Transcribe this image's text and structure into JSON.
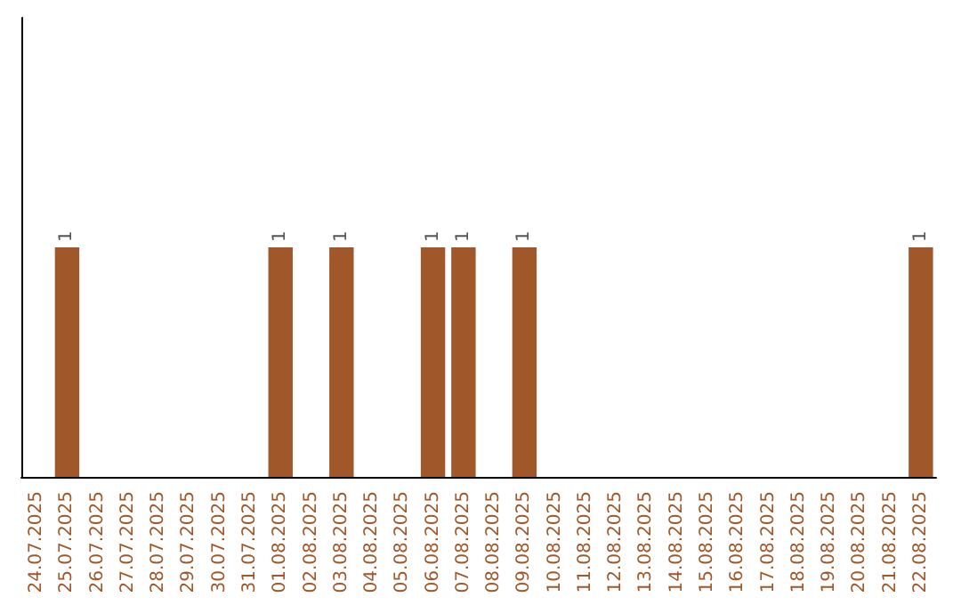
{
  "chart_data": {
    "type": "bar",
    "categories": [
      "24.07.2025",
      "25.07.2025",
      "26.07.2025",
      "27.07.2025",
      "28.07.2025",
      "29.07.2025",
      "30.07.2025",
      "31.07.2025",
      "01.08.2025",
      "02.08.2025",
      "03.08.2025",
      "04.08.2025",
      "05.08.2025",
      "06.08.2025",
      "07.08.2025",
      "08.08.2025",
      "09.08.2025",
      "10.08.2025",
      "11.08.2025",
      "12.08.2025",
      "13.08.2025",
      "14.08.2025",
      "15.08.2025",
      "16.08.2025",
      "17.08.2025",
      "18.08.2025",
      "19.08.2025",
      "20.08.2025",
      "21.08.2025",
      "22.08.2025"
    ],
    "values": [
      0,
      1,
      0,
      0,
      0,
      0,
      0,
      0,
      1,
      0,
      1,
      0,
      0,
      1,
      1,
      0,
      1,
      0,
      0,
      0,
      0,
      0,
      0,
      0,
      0,
      0,
      0,
      0,
      0,
      1
    ],
    "value_labels": [
      null,
      "1",
      null,
      null,
      null,
      null,
      null,
      null,
      "1",
      null,
      "1",
      null,
      null,
      "1",
      "1",
      null,
      "1",
      null,
      null,
      null,
      null,
      null,
      null,
      null,
      null,
      null,
      null,
      null,
      null,
      "1"
    ],
    "color": "#a0582a",
    "ylim": [
      0,
      2
    ],
    "tick_labels": "x"
  }
}
